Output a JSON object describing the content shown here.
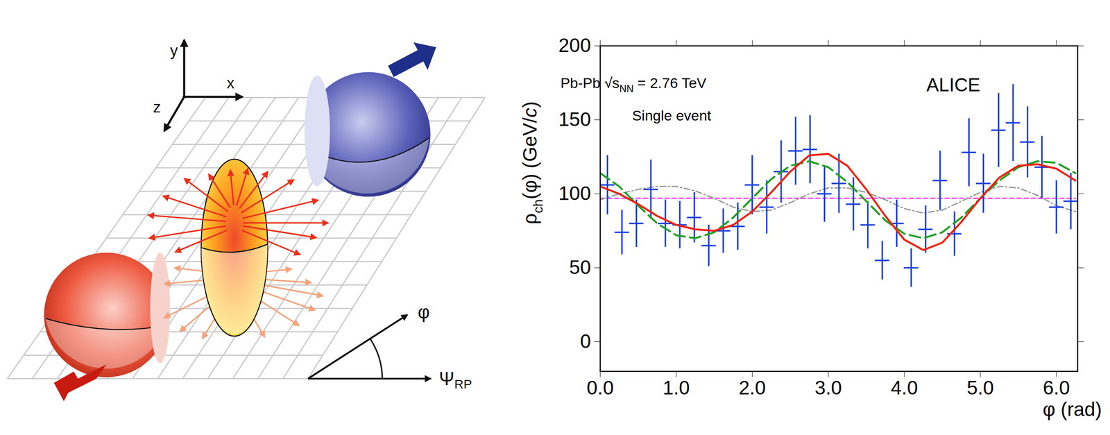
{
  "diagram": {
    "axis_labels": [
      "y",
      "x",
      "z"
    ],
    "angle_label": "φ",
    "reference_label": "Ψ",
    "reference_sub": "RP"
  },
  "chart_data": {
    "type": "line",
    "annotations": [
      [
        {
          "text": "Pb-Pb √s"
        },
        {
          "text": "NN",
          "sub": true
        },
        {
          "text": " = 2.76 TeV"
        }
      ],
      [
        {
          "text": "Single event"
        }
      ],
      [
        {
          "text": "ALICE"
        }
      ]
    ],
    "x_label": "φ (rad)",
    "y_label": [
      {
        "text": "ρ"
      },
      {
        "text": "ch",
        "sub": true
      },
      {
        "text": "(φ) (GeV/"
      },
      {
        "text": "c",
        "italic": true
      },
      {
        "text": ")"
      }
    ],
    "xlim": [
      0,
      6.28
    ],
    "xticks": [
      0,
      1,
      2,
      3,
      4,
      5,
      6
    ],
    "ylim": [
      -20,
      200
    ],
    "yticks": [
      0,
      50,
      100,
      150,
      200
    ],
    "grid": false,
    "points": {
      "type": "scatter",
      "color": "#1a3fe0",
      "x": [
        0.095,
        0.286,
        0.476,
        0.666,
        0.857,
        1.047,
        1.238,
        1.428,
        1.618,
        1.809,
        1.999,
        2.19,
        2.38,
        2.57,
        2.76,
        2.95,
        3.14,
        3.33,
        3.52,
        3.71,
        3.9,
        4.09,
        4.28,
        4.47,
        4.66,
        4.85,
        5.04,
        5.24,
        5.43,
        5.62,
        5.81,
        6.0,
        6.19
      ],
      "y": [
        106,
        74,
        80,
        103,
        80,
        79,
        84,
        65,
        75,
        78,
        106,
        91,
        115,
        129,
        130,
        100,
        107,
        93,
        79,
        55,
        80,
        50,
        76,
        109,
        73,
        128,
        107,
        143,
        148,
        135,
        118,
        91,
        95
      ],
      "y_errors": [
        20,
        15,
        16,
        20,
        16,
        16,
        17,
        14,
        15,
        16,
        20,
        18,
        21,
        23,
        23,
        19,
        20,
        18,
        16,
        13,
        16,
        13,
        16,
        20,
        15,
        23,
        20,
        25,
        26,
        24,
        21,
        18,
        19
      ],
      "x_errors": [
        0.095,
        0.095,
        0.095,
        0.095,
        0.095,
        0.095,
        0.095,
        0.095,
        0.095,
        0.095,
        0.095,
        0.095,
        0.095,
        0.095,
        0.095,
        0.095,
        0.095,
        0.095,
        0.095,
        0.095,
        0.095,
        0.095,
        0.095,
        0.095,
        0.095,
        0.095,
        0.095,
        0.095,
        0.095,
        0.095,
        0.095,
        0.095,
        0.095
      ]
    },
    "x": [
      0,
      0.25,
      0.5,
      0.75,
      1.0,
      1.25,
      1.5,
      1.75,
      2.0,
      2.25,
      2.5,
      2.75,
      3.0,
      3.25,
      3.5,
      3.75,
      4.0,
      4.25,
      4.5,
      4.75,
      5.0,
      5.25,
      5.5,
      5.75,
      6.0,
      6.25
    ],
    "series": [
      {
        "color": "#ff33ff",
        "line_style": "dashed",
        "values": [
          97,
          97,
          97,
          97,
          97,
          97,
          97,
          97,
          97,
          97,
          97,
          97,
          97,
          97,
          97,
          97,
          97,
          97,
          97,
          97,
          97,
          97,
          97,
          97,
          97,
          97
        ]
      },
      {
        "color": "#999999",
        "line_style": "dashdot",
        "values": [
          96,
          100,
          103,
          105,
          105,
          102,
          97,
          91,
          88,
          89,
          94,
          100,
          104,
          104,
          101,
          96,
          90,
          87,
          89,
          95,
          101,
          105,
          104,
          99,
          92,
          88
        ]
      },
      {
        "color": "#22a022",
        "line_style": "longdash",
        "values": [
          114,
          105,
          92,
          80,
          72,
          70,
          74,
          84,
          97,
          110,
          119,
          122,
          118,
          108,
          95,
          82,
          73,
          70,
          74,
          84,
          97,
          109,
          118,
          122,
          121,
          114
        ]
      },
      {
        "color": "#ee2211",
        "line_style": "solid",
        "values": [
          105,
          100,
          93,
          85,
          79,
          76,
          75,
          79,
          88,
          101,
          115,
          126,
          127,
          119,
          103,
          85,
          69,
          62,
          67,
          81,
          97,
          111,
          119,
          120,
          117,
          109
        ]
      }
    ]
  }
}
